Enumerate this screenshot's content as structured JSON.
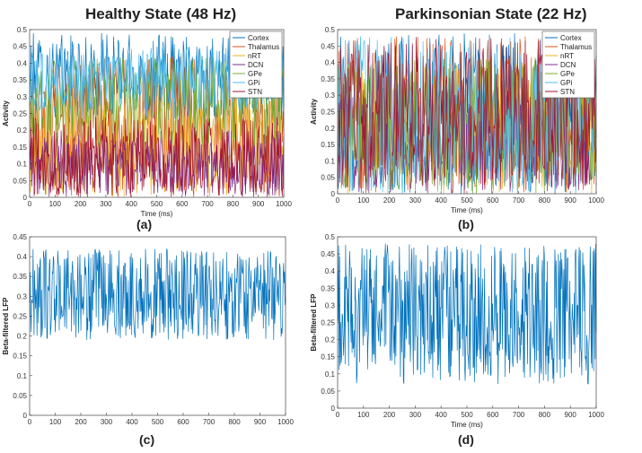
{
  "titles": {
    "left": "Healthy State (48 Hz)",
    "right": "Parkinsonian State (22 Hz)"
  },
  "captions": {
    "a": "(a)",
    "b": "(b)",
    "c": "(c)",
    "d": "(d)"
  },
  "chart_data": [
    {
      "id": "a",
      "type": "line",
      "xlabel": "Time (ms)",
      "ylabel": "Activity",
      "xlim": [
        0,
        1000
      ],
      "ylim": [
        0,
        0.5
      ],
      "xticks": [
        0,
        100,
        200,
        300,
        400,
        500,
        600,
        700,
        800,
        900,
        1000
      ],
      "yticks": [
        0,
        0.05,
        0.1,
        0.15,
        0.2,
        0.25,
        0.3,
        0.35,
        0.4,
        0.45,
        0.5
      ],
      "legend": "top-right",
      "series": [
        {
          "name": "Cortex",
          "color": "#0072bd",
          "range": [
            0.22,
            0.49
          ]
        },
        {
          "name": "Thalamus",
          "color": "#d95319",
          "range": [
            0.0,
            0.42
          ]
        },
        {
          "name": "nRT",
          "color": "#edb120",
          "range": [
            0.0,
            0.3
          ]
        },
        {
          "name": "DCN",
          "color": "#7e2f8e",
          "range": [
            0.0,
            0.2
          ]
        },
        {
          "name": "GPe",
          "color": "#77ac30",
          "range": [
            0.15,
            0.42
          ]
        },
        {
          "name": "GPi",
          "color": "#4dbeee",
          "range": [
            0.26,
            0.45
          ]
        },
        {
          "name": "STN",
          "color": "#a2142f",
          "range": [
            0.0,
            0.24
          ]
        }
      ]
    },
    {
      "id": "b",
      "type": "line",
      "xlabel": "Time (ms)",
      "ylabel": "Activity",
      "xlim": [
        0,
        1000
      ],
      "ylim": [
        0,
        0.5
      ],
      "xticks": [
        0,
        100,
        200,
        300,
        400,
        500,
        600,
        700,
        800,
        900,
        1000
      ],
      "yticks": [
        0,
        0.05,
        0.1,
        0.15,
        0.2,
        0.25,
        0.3,
        0.35,
        0.4,
        0.45,
        0.5
      ],
      "legend": "top-right",
      "series": [
        {
          "name": "Cortex",
          "color": "#0072bd",
          "range": [
            0.0,
            0.49
          ]
        },
        {
          "name": "Thalamus",
          "color": "#d95319",
          "range": [
            0.0,
            0.48
          ]
        },
        {
          "name": "nRT",
          "color": "#edb120",
          "range": [
            0.0,
            0.4
          ]
        },
        {
          "name": "DCN",
          "color": "#7e2f8e",
          "range": [
            0.0,
            0.3
          ]
        },
        {
          "name": "GPe",
          "color": "#77ac30",
          "range": [
            0.0,
            0.42
          ]
        },
        {
          "name": "GPi",
          "color": "#4dbeee",
          "range": [
            0.0,
            0.48
          ]
        },
        {
          "name": "STN",
          "color": "#a2142f",
          "range": [
            0.0,
            0.48
          ]
        }
      ]
    },
    {
      "id": "c",
      "type": "line",
      "xlabel": "",
      "ylabel": "Beta-filtered LFP",
      "xlim": [
        0,
        1000
      ],
      "ylim": [
        0,
        0.45
      ],
      "xticks": [
        0,
        100,
        200,
        300,
        400,
        500,
        600,
        700,
        800,
        900,
        1000
      ],
      "yticks": [
        0,
        0.05,
        0.1,
        0.15,
        0.2,
        0.25,
        0.3,
        0.35,
        0.4,
        0.45
      ],
      "series": [
        {
          "name": "",
          "color": "#0072bd",
          "range": [
            0.19,
            0.42
          ]
        }
      ]
    },
    {
      "id": "d",
      "type": "line",
      "xlabel": "Time (ms)",
      "ylabel": "Beta-filtered LFP",
      "xlim": [
        0,
        1000
      ],
      "ylim": [
        0,
        0.5
      ],
      "xticks": [
        0,
        100,
        200,
        300,
        400,
        500,
        600,
        700,
        800,
        900,
        1000
      ],
      "yticks": [
        0,
        0.05,
        0.1,
        0.15,
        0.2,
        0.25,
        0.3,
        0.35,
        0.4,
        0.45,
        0.5
      ],
      "series": [
        {
          "name": "",
          "color": "#0072bd",
          "range": [
            0.07,
            0.48
          ]
        }
      ]
    }
  ]
}
